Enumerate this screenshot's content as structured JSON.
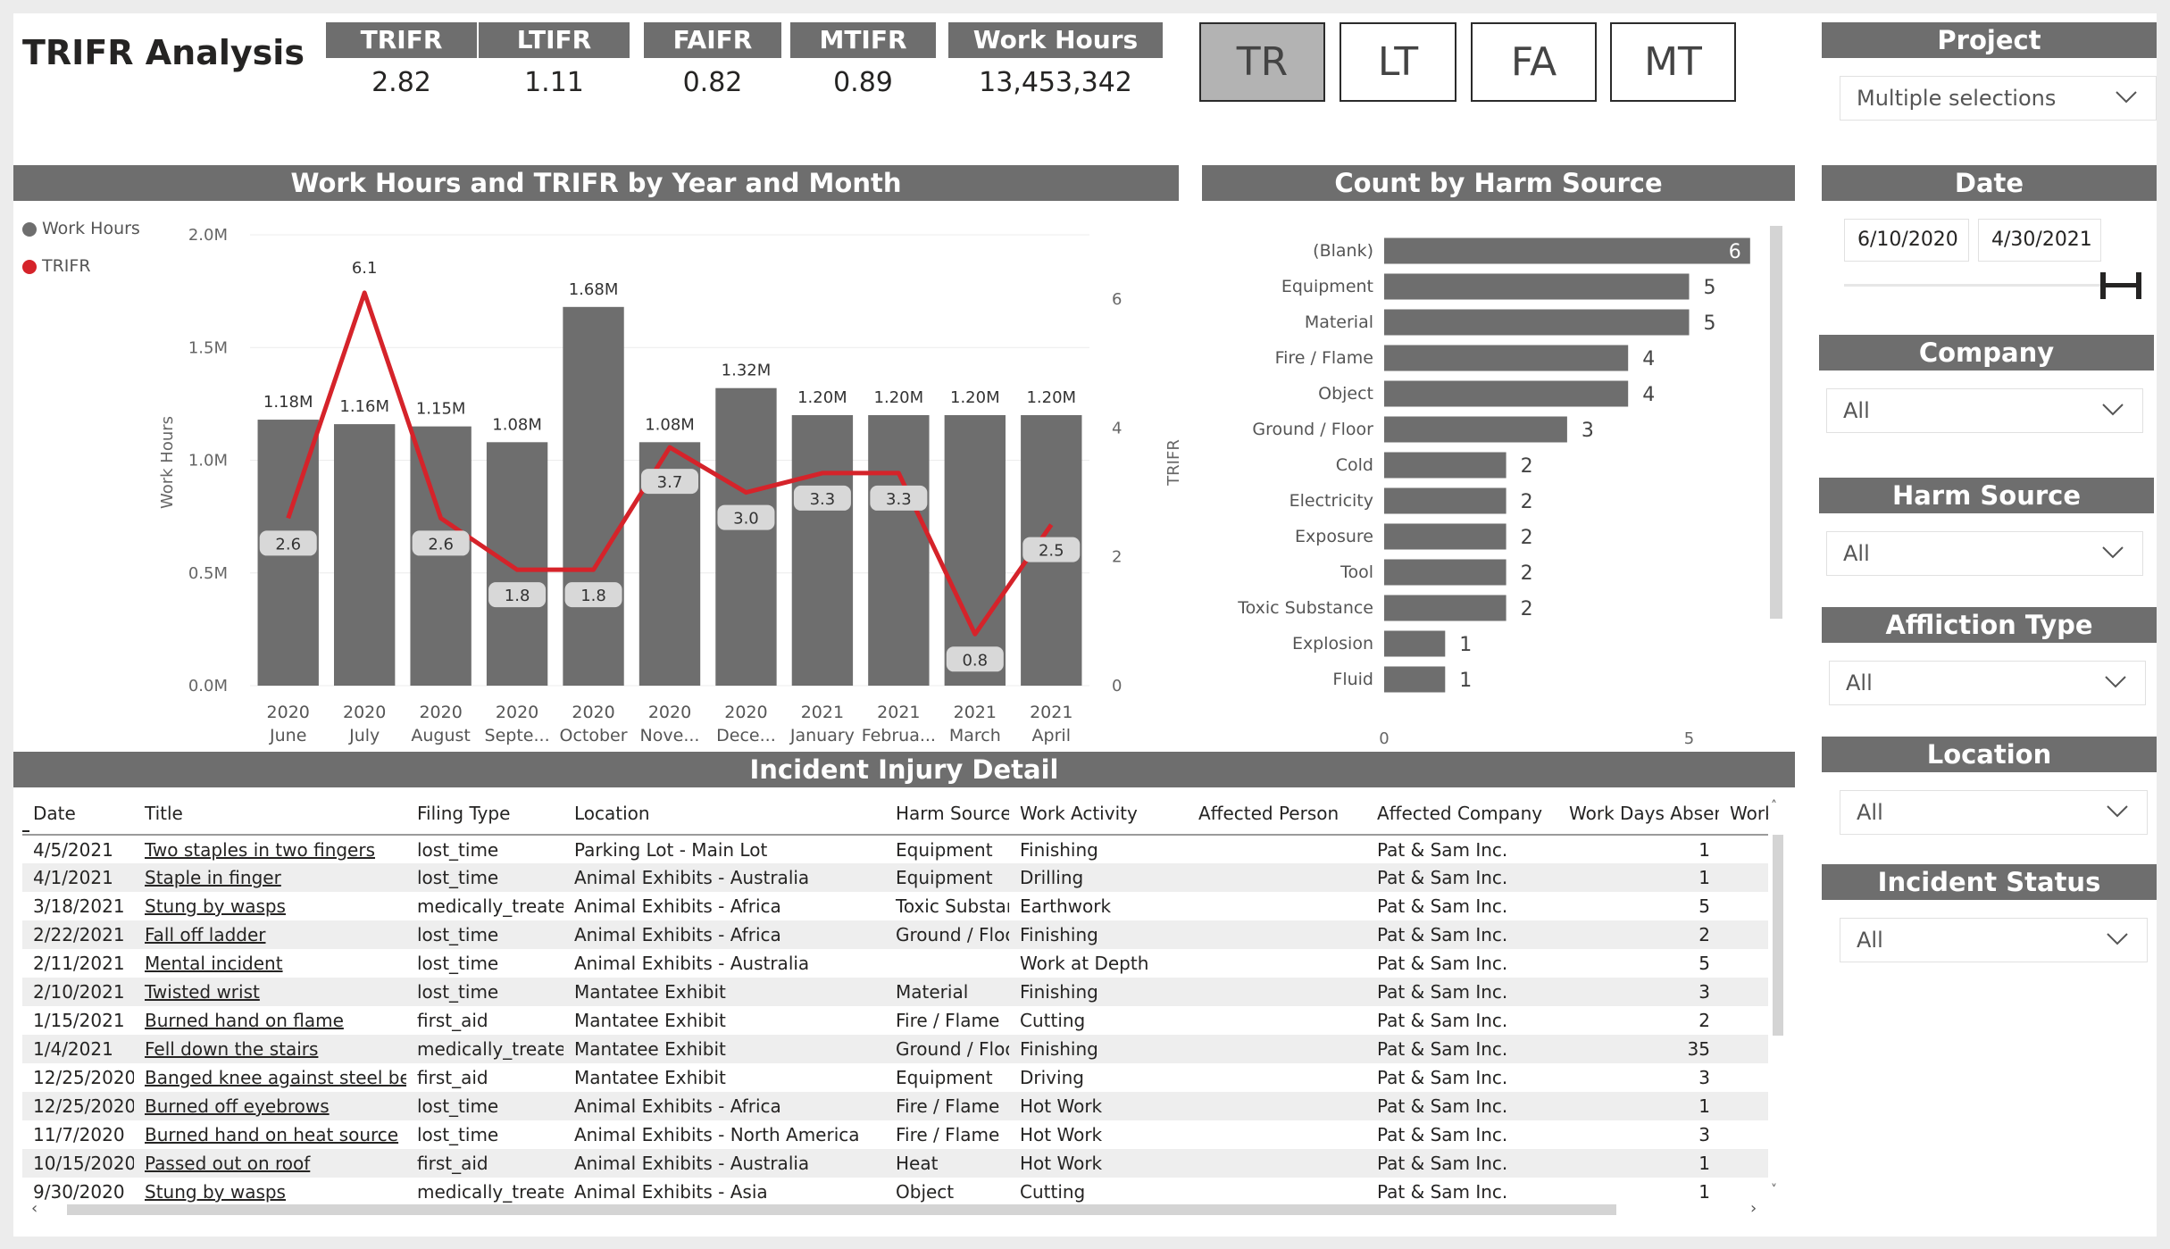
{
  "title": "TRIFR Analysis",
  "kpis": [
    {
      "label": "TRIFR",
      "value": "2.82"
    },
    {
      "label": "LTIFR",
      "value": "1.11"
    },
    {
      "label": "FAIFR",
      "value": "0.82"
    },
    {
      "label": "MTIFR",
      "value": "0.89"
    },
    {
      "label": "Work Hours",
      "value": "13,453,342"
    }
  ],
  "toggles": [
    {
      "label": "TR",
      "active": true
    },
    {
      "label": "LT",
      "active": false
    },
    {
      "label": "FA",
      "active": false
    },
    {
      "label": "MT",
      "active": false
    }
  ],
  "combo_chart": {
    "title": "Work Hours and TRIFR by Year and Month",
    "legend": {
      "work_hours": "Work Hours",
      "trifr": "TRIFR"
    },
    "y_left_label": "Work Hours",
    "y_right_label": "TRIFR",
    "y_left_ticks": [
      "0.0M",
      "0.5M",
      "1.0M",
      "1.5M",
      "2.0M"
    ],
    "y_right_ticks": [
      "0",
      "2",
      "4",
      "6"
    ]
  },
  "harm_chart": {
    "title": "Count by Harm Source",
    "x_ticks": [
      "0",
      "5"
    ]
  },
  "chart_data": [
    {
      "type": "bar",
      "title": "Work Hours and TRIFR by Year and Month",
      "ylabel": "Work Hours",
      "y2label": "TRIFR",
      "ylim": [
        0,
        2000000
      ],
      "y2lim": [
        0,
        7
      ],
      "categories": [
        {
          "year": "2020",
          "month": "June"
        },
        {
          "year": "2020",
          "month": "July"
        },
        {
          "year": "2020",
          "month": "August"
        },
        {
          "year": "2020",
          "month": "Septe..."
        },
        {
          "year": "2020",
          "month": "October"
        },
        {
          "year": "2020",
          "month": "Nove..."
        },
        {
          "year": "2020",
          "month": "Dece..."
        },
        {
          "year": "2021",
          "month": "January"
        },
        {
          "year": "2021",
          "month": "Februa..."
        },
        {
          "year": "2021",
          "month": "March"
        },
        {
          "year": "2021",
          "month": "April"
        }
      ],
      "series": [
        {
          "name": "Work Hours",
          "type": "bar",
          "color": "#6e6e6e",
          "values": [
            1180000,
            1160000,
            1150000,
            1080000,
            1680000,
            1080000,
            1320000,
            1200000,
            1200000,
            1200000,
            1200000
          ],
          "labels": [
            "1.18M",
            "1.16M",
            "1.15M",
            "1.08M",
            "1.68M",
            "1.08M",
            "1.32M",
            "1.20M",
            "1.20M",
            "1.20M",
            "1.20M"
          ]
        },
        {
          "name": "TRIFR",
          "type": "line",
          "color": "#d5232a",
          "values": [
            2.6,
            6.1,
            2.6,
            1.8,
            1.8,
            3.7,
            3.0,
            3.3,
            3.3,
            0.8,
            2.5
          ],
          "labels": [
            "2.6",
            "6.1",
            "2.6",
            "1.8",
            "1.8",
            "3.7",
            "3.0",
            "3.3",
            "3.3",
            "0.8",
            "2.5"
          ]
        }
      ]
    },
    {
      "type": "bar",
      "orientation": "horizontal",
      "title": "Count by Harm Source",
      "xlim": [
        0,
        6
      ],
      "categories": [
        "(Blank)",
        "Equipment",
        "Material",
        "Fire / Flame",
        "Object",
        "Ground / Floor",
        "Cold",
        "Electricity",
        "Exposure",
        "Tool",
        "Toxic Substance",
        "Explosion",
        "Fluid"
      ],
      "values": [
        6,
        5,
        5,
        4,
        4,
        3,
        2,
        2,
        2,
        2,
        2,
        1,
        1
      ],
      "color": "#6e6e6e"
    }
  ],
  "table": {
    "title": "Incident Injury Detail",
    "columns": [
      "Date",
      "Title",
      "Filing Type",
      "Location",
      "Harm Source",
      "Work Activity",
      "Affected Person",
      "Affected Company",
      "Work Days Absent",
      "Work"
    ],
    "rows": [
      [
        "4/5/2021",
        "Two staples in two fingers",
        "lost_time",
        "Parking Lot - Main Lot",
        "Equipment",
        "Finishing",
        "",
        "Pat & Sam Inc.",
        "1"
      ],
      [
        "4/1/2021",
        "Staple in finger",
        "lost_time",
        "Animal Exhibits - Australia",
        "Equipment",
        "Drilling",
        "",
        "Pat & Sam Inc.",
        "1"
      ],
      [
        "3/18/2021",
        "Stung by wasps",
        "medically_treated",
        "Animal Exhibits - Africa",
        "Toxic Substance",
        "Earthwork",
        "",
        "Pat & Sam Inc.",
        "5"
      ],
      [
        "2/22/2021",
        "Fall off ladder",
        "lost_time",
        "Animal Exhibits - Africa",
        "Ground / Floor",
        "Finishing",
        "",
        "Pat & Sam Inc.",
        "2"
      ],
      [
        "2/11/2021",
        "Mental incident",
        "lost_time",
        "Animal Exhibits - Australia",
        "",
        "Work at Depth",
        "",
        "Pat & Sam Inc.",
        "5"
      ],
      [
        "2/10/2021",
        "Twisted wrist",
        "lost_time",
        "Mantatee Exhibit",
        "Material",
        "Finishing",
        "",
        "Pat & Sam Inc.",
        "3"
      ],
      [
        "1/15/2021",
        "Burned hand on flame",
        "first_aid",
        "Mantatee Exhibit",
        "Fire / Flame",
        "Cutting",
        "",
        "Pat & Sam Inc.",
        "2"
      ],
      [
        "1/4/2021",
        "Fell down the stairs",
        "medically_treated",
        "Mantatee Exhibit",
        "Ground / Floor",
        "Finishing",
        "",
        "Pat & Sam Inc.",
        "35"
      ],
      [
        "12/25/2020",
        "Banged knee against steel beam",
        "first_aid",
        "Mantatee Exhibit",
        "Equipment",
        "Driving",
        "",
        "Pat & Sam Inc.",
        "3"
      ],
      [
        "12/25/2020",
        "Burned off eyebrows",
        "lost_time",
        "Animal Exhibits - Africa",
        "Fire / Flame",
        "Hot Work",
        "",
        "Pat & Sam Inc.",
        "1"
      ],
      [
        "11/7/2020",
        "Burned hand on heat source",
        "lost_time",
        "Animal Exhibits - North America",
        "Fire / Flame",
        "Hot Work",
        "",
        "Pat & Sam Inc.",
        "3"
      ],
      [
        "10/15/2020",
        "Passed out on roof",
        "first_aid",
        "Animal Exhibits - Australia",
        "Heat",
        "Hot Work",
        "",
        "Pat & Sam Inc.",
        "1"
      ],
      [
        "9/30/2020",
        "Stung by wasps",
        "medically_treated",
        "Animal Exhibits - Asia",
        "Object",
        "Cutting",
        "",
        "Pat & Sam Inc.",
        "1"
      ]
    ]
  },
  "slicers": {
    "project": {
      "title": "Project",
      "value": "Multiple selections"
    },
    "date": {
      "title": "Date",
      "start": "6/10/2020",
      "end": "4/30/2021",
      "range_start_fraction": 0.88,
      "range_end_fraction": 1.0
    },
    "company": {
      "title": "Company",
      "value": "All"
    },
    "harm_source": {
      "title": "Harm Source",
      "value": "All"
    },
    "affliction_type": {
      "title": "Affliction Type",
      "value": "All"
    },
    "location": {
      "title": "Location",
      "value": "All"
    },
    "incident_status": {
      "title": "Incident Status",
      "value": "All"
    }
  },
  "colors": {
    "header_gray": "#6e6e6e",
    "bar_gray": "#6e6e6e",
    "line_red": "#d5232a",
    "toggle_active": "#b3b3b3"
  }
}
